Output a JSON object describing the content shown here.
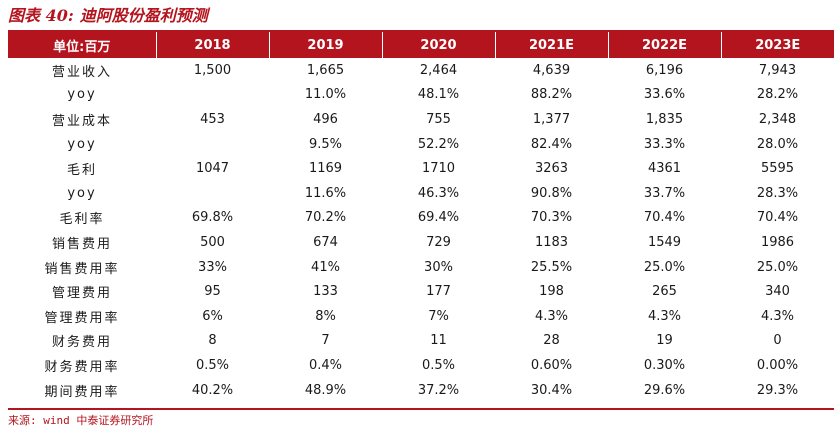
{
  "title": {
    "prefix": "图表 40:",
    "text": "迪阿股份盈利预测"
  },
  "table": {
    "headers": [
      "单位:百万",
      "2018",
      "2019",
      "2020",
      "2021E",
      "2022E",
      "2023E"
    ],
    "rows": [
      [
        "营业收入",
        "1,500",
        "1,665",
        "2,464",
        "4,639",
        "6,196",
        "7,943"
      ],
      [
        "yoy",
        "",
        "11.0%",
        "48.1%",
        "88.2%",
        "33.6%",
        "28.2%"
      ],
      [
        "营业成本",
        "453",
        "496",
        "755",
        "1,377",
        "1,835",
        "2,348"
      ],
      [
        "yoy",
        "",
        "9.5%",
        "52.2%",
        "82.4%",
        "33.3%",
        "28.0%"
      ],
      [
        "毛利",
        "1047",
        "1169",
        "1710",
        "3263",
        "4361",
        "5595"
      ],
      [
        "yoy",
        "",
        "11.6%",
        "46.3%",
        "90.8%",
        "33.7%",
        "28.3%"
      ],
      [
        "毛利率",
        "69.8%",
        "70.2%",
        "69.4%",
        "70.3%",
        "70.4%",
        "70.4%"
      ],
      [
        "销售费用",
        "500",
        "674",
        "729",
        "1183",
        "1549",
        "1986"
      ],
      [
        "销售费用率",
        "33%",
        "41%",
        "30%",
        "25.5%",
        "25.0%",
        "25.0%"
      ],
      [
        "管理费用",
        "95",
        "133",
        "177",
        "198",
        "265",
        "340"
      ],
      [
        "管理费用率",
        "6%",
        "8%",
        "7%",
        "4.3%",
        "4.3%",
        "4.3%"
      ],
      [
        "财务费用",
        "8",
        "7",
        "11",
        "28",
        "19",
        "0"
      ],
      [
        "财务费用率",
        "0.5%",
        "0.4%",
        "0.5%",
        "0.60%",
        "0.30%",
        "0.00%"
      ],
      [
        "期间费用率",
        "40.2%",
        "48.9%",
        "37.2%",
        "30.4%",
        "29.6%",
        "29.3%"
      ]
    ]
  },
  "source": "来源: wind 中泰证券研究所",
  "colors": {
    "accent": "#b4141e",
    "header_text": "#ffffff"
  }
}
